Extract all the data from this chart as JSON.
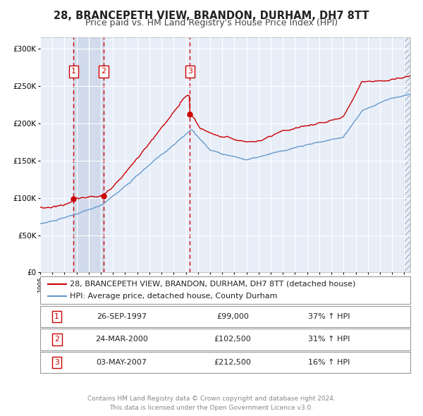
{
  "title": "28, BRANCEPETH VIEW, BRANDON, DURHAM, DH7 8TT",
  "subtitle": "Price paid vs. HM Land Registry's House Price Index (HPI)",
  "legend_line1": "28, BRANCEPETH VIEW, BRANDON, DURHAM, DH7 8TT (detached house)",
  "legend_line2": "HPI: Average price, detached house, County Durham",
  "footer1": "Contains HM Land Registry data © Crown copyright and database right 2024.",
  "footer2": "This data is licensed under the Open Government Licence v3.0.",
  "yticks": [
    0,
    50000,
    100000,
    150000,
    200000,
    250000,
    300000
  ],
  "ytick_labels": [
    "£0",
    "£50K",
    "£100K",
    "£150K",
    "£200K",
    "£250K",
    "£300K"
  ],
  "xmin": 1995.0,
  "xmax": 2025.5,
  "ymin": 0,
  "ymax": 315000,
  "sale_color": "#cc0000",
  "hpi_color": "#6699cc",
  "plot_bg": "#e8eef8",
  "grid_color": "#ffffff",
  "shade_color": "#c8d4e8",
  "purchases": [
    {
      "num": 1,
      "date": "26-SEP-1997",
      "price": 99000,
      "x": 1997.74,
      "hpi_pct": "37% ↑ HPI"
    },
    {
      "num": 2,
      "date": "24-MAR-2000",
      "price": 102500,
      "x": 2000.23,
      "hpi_pct": "31% ↑ HPI"
    },
    {
      "num": 3,
      "date": "03-MAY-2007",
      "price": 212500,
      "x": 2007.34,
      "hpi_pct": "16% ↑ HPI"
    }
  ],
  "title_fontsize": 10.5,
  "subtitle_fontsize": 9,
  "tick_fontsize": 7.5,
  "legend_fontsize": 8,
  "table_fontsize": 8,
  "footer_fontsize": 6.5
}
